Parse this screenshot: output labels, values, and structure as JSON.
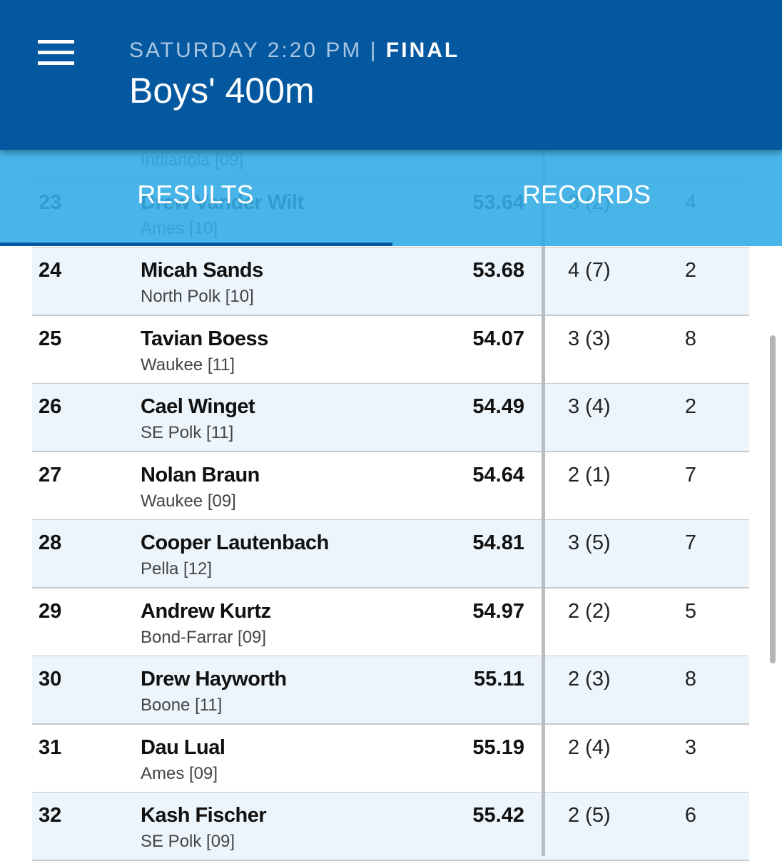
{
  "header": {
    "day": "SATURDAY 2:20 PM",
    "separator": "|",
    "status": "FINAL",
    "title": "Boys' 400m"
  },
  "tabs": [
    "RESULTS",
    "RECORDS"
  ],
  "rows": [
    {
      "team": "Indianola [09]"
    },
    {
      "place": 23,
      "name": "Drew Vander Wilt",
      "team": "Ames [10]",
      "time": 53.64,
      "heat": "3 (2)",
      "lane": 4
    },
    {
      "place": 24,
      "name": "Micah Sands",
      "team": "North Polk [10]",
      "time": 53.68,
      "heat": "4 (7)",
      "lane": 2
    },
    {
      "place": 25,
      "name": "Tavian Boess",
      "team": "Waukee [11]",
      "time": 54.07,
      "heat": "3 (3)",
      "lane": 8
    },
    {
      "place": 26,
      "name": "Cael Winget",
      "team": "SE Polk [11]",
      "time": 54.49,
      "heat": "3 (4)",
      "lane": 2
    },
    {
      "place": 27,
      "name": "Nolan Braun",
      "team": "Waukee [09]",
      "time": 54.64,
      "heat": "2 (1)",
      "lane": 7
    },
    {
      "place": 28,
      "name": "Cooper Lautenbach",
      "team": "Pella [12]",
      "time": 54.81,
      "heat": "3 (5)",
      "lane": 7
    },
    {
      "place": 29,
      "name": "Andrew Kurtz",
      "team": "Bond-Farrar [09]",
      "time": 54.97,
      "heat": "2 (2)",
      "lane": 5
    },
    {
      "place": 30,
      "name": "Drew Hayworth",
      "team": "Boone [11]",
      "time": 55.11,
      "heat": "2 (3)",
      "lane": 8
    },
    {
      "place": 31,
      "name": "Dau Lual",
      "team": "Ames [09]",
      "time": 55.19,
      "heat": "2 (4)",
      "lane": 3
    },
    {
      "place": 32,
      "name": "Kash Fischer",
      "team": "SE Polk [09]",
      "time": 55.42,
      "heat": "2 (5)",
      "lane": 6
    }
  ]
}
